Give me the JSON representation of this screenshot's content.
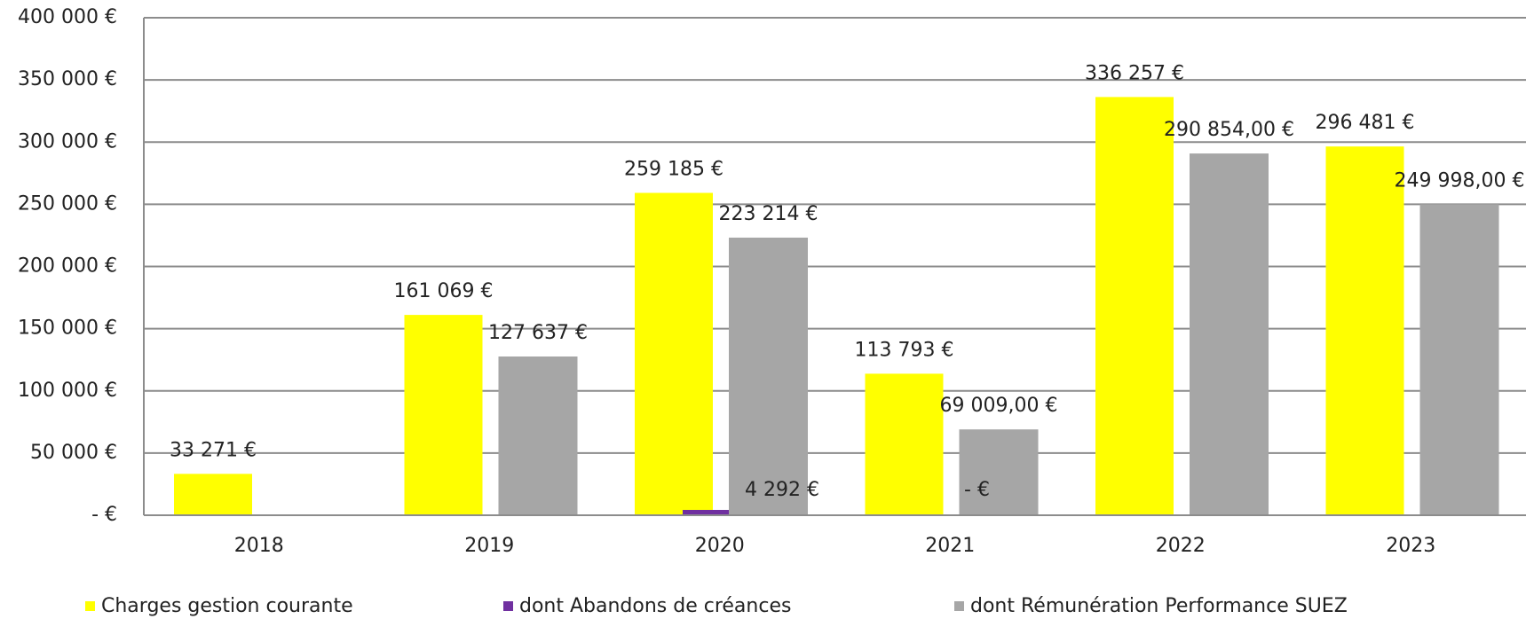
{
  "chart_data": {
    "type": "bar",
    "categories": [
      "2018",
      "2019",
      "2020",
      "2021",
      "2022",
      "2023"
    ],
    "series": [
      {
        "name": "Charges gestion courante",
        "color": "#ffff00",
        "values": [
          33271,
          161069,
          259185,
          113793,
          336257,
          296481
        ],
        "value_labels": [
          "33 271 €",
          "161 069 €",
          "259 185 €",
          "113 793 €",
          "336 257 €",
          "296 481 €"
        ]
      },
      {
        "name": "dont Abandons de créances",
        "color": "#7030a0",
        "values": [
          null,
          null,
          4292,
          0,
          null,
          null
        ],
        "value_labels": [
          null,
          null,
          "4 292 €",
          "-   €",
          null,
          null
        ]
      },
      {
        "name": "dont Rémunération Performance SUEZ",
        "color": "#a6a6a6",
        "values": [
          null,
          127637,
          223214,
          69009,
          290854,
          249998
        ],
        "value_labels": [
          null,
          "127 637 €",
          "223 214 €",
          "69 009,00 €",
          "290 854,00 €",
          "249 998,00 €"
        ]
      }
    ],
    "ylim": [
      0,
      400000
    ],
    "yticks": [
      {
        "value": 0,
        "label": "-   €"
      },
      {
        "value": 50000,
        "label": "50 000 €"
      },
      {
        "value": 100000,
        "label": "100 000 €"
      },
      {
        "value": 150000,
        "label": "150 000 €"
      },
      {
        "value": 200000,
        "label": "200 000 €"
      },
      {
        "value": 250000,
        "label": "250 000 €"
      },
      {
        "value": 300000,
        "label": "300 000 €"
      },
      {
        "value": 350000,
        "label": "350 000 €"
      },
      {
        "value": 400000,
        "label": "400 000 €"
      }
    ],
    "grid": true,
    "legend": "bottom"
  }
}
